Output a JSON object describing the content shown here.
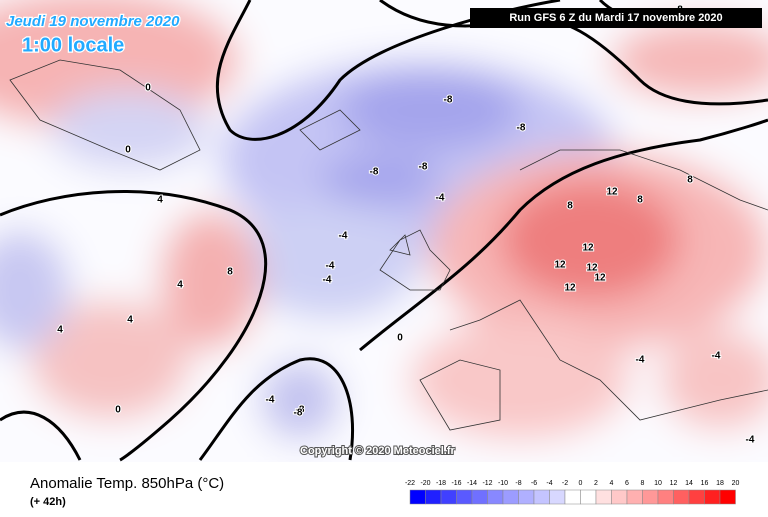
{
  "header": {
    "date": "Jeudi 19 novembre 2020",
    "time": "1:00 locale",
    "run": "Run GFS 6 Z du Mardi 17 novembre 2020"
  },
  "copyright": "Copyright © 2020 Meteociel.fr",
  "footer": {
    "title": "Anomalie Temp. 850hPa (°C)",
    "lead": "(+ 42h)"
  },
  "colorbar": {
    "ticks": [
      -22,
      -20,
      -18,
      -16,
      -14,
      -12,
      -10,
      -8,
      -6,
      -4,
      -2,
      0,
      2,
      4,
      6,
      8,
      10,
      12,
      14,
      16,
      18,
      20
    ],
    "colors": [
      "#0000ff",
      "#2020ff",
      "#4040ff",
      "#5a5aff",
      "#7070ff",
      "#8888ff",
      "#9c9cff",
      "#b0b0ff",
      "#c4c4ff",
      "#d8d8ff",
      "#ffffff",
      "#ffffff",
      "#ffe0e0",
      "#ffc8c8",
      "#ffb0b0",
      "#ff9898",
      "#ff8080",
      "#ff6060",
      "#ff4040",
      "#ff2020",
      "#ff0000"
    ]
  },
  "contour_labels": [
    -8,
    -8,
    -8,
    -8,
    -8,
    -4,
    -4,
    -4,
    -4,
    -4,
    0,
    0,
    0,
    0,
    4,
    4,
    4,
    4,
    8,
    8,
    8,
    8,
    12,
    12,
    12,
    12,
    12,
    12,
    -4,
    -8,
    -4,
    -4,
    4,
    8
  ]
}
